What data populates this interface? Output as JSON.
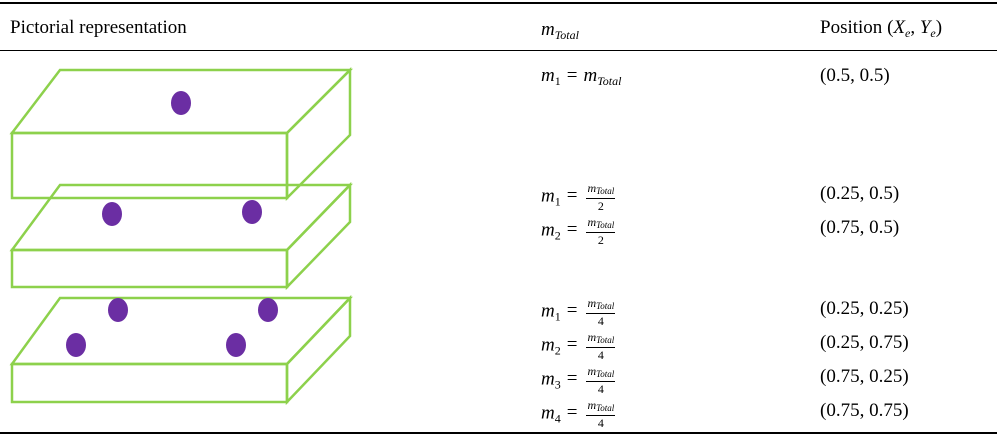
{
  "header": {
    "col1": "Pictorial representation",
    "col2": {
      "var": "m",
      "sub": "Total"
    },
    "col3": {
      "text": "Position",
      "open": "(",
      "x": "X",
      "x_sub": "e",
      "sep": ",",
      "y": "Y",
      "y_sub": "e",
      "close": ")"
    }
  },
  "rows": [
    {
      "entries": [
        {
          "var": "m",
          "index": "1",
          "eq": "=",
          "rhs_var": "m",
          "rhs_sub": "Total",
          "position": "(0.5, 0.5)"
        }
      ]
    },
    {
      "entries": [
        {
          "var": "m",
          "index": "1",
          "eq": "=",
          "rhs_var": "m",
          "rhs_sub": "Total",
          "den": "2",
          "position": "(0.25, 0.5)"
        },
        {
          "var": "m",
          "index": "2",
          "eq": "=",
          "rhs_var": "m",
          "rhs_sub": "Total",
          "den": "2",
          "position": "(0.75, 0.5)"
        }
      ]
    },
    {
      "entries": [
        {
          "var": "m",
          "index": "1",
          "eq": "=",
          "rhs_var": "m",
          "rhs_sub": "Total",
          "den": "4",
          "position": "(0.25, 0.25)"
        },
        {
          "var": "m",
          "index": "2",
          "eq": "=",
          "rhs_var": "m",
          "rhs_sub": "Total",
          "den": "4",
          "position": "(0.25, 0.75)"
        },
        {
          "var": "m",
          "index": "3",
          "eq": "=",
          "rhs_var": "m",
          "rhs_sub": "Total",
          "den": "4",
          "position": "(0.75, 0.25)"
        },
        {
          "var": "m",
          "index": "4",
          "eq": "=",
          "rhs_var": "m",
          "rhs_sub": "Total",
          "den": "4",
          "position": "(0.75, 0.75)"
        }
      ]
    }
  ]
}
